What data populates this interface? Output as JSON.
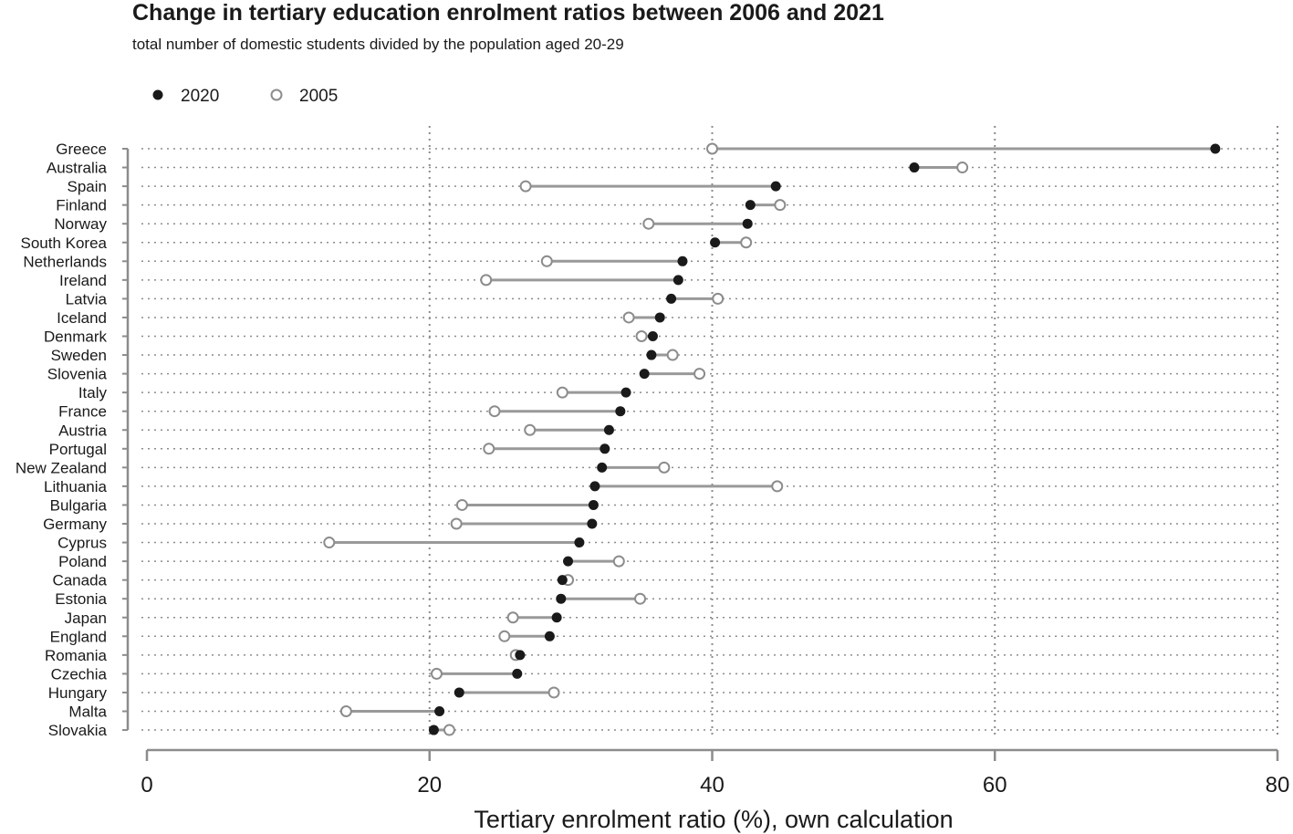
{
  "chart_data": {
    "type": "dumbbell",
    "title": "Change in tertiary education enrolment ratios between 2006 and 2021",
    "subtitle": "total number of domestic students divided by the population aged 20-29",
    "xlabel": "Tertiary enrolment ratio (%), own calculation",
    "ylabel": "",
    "xlim": [
      0,
      80
    ],
    "xticks": [
      0,
      20,
      40,
      60,
      80
    ],
    "grid": "dotted vertical at ticks, dotted horizontal per country",
    "legend_position": "top-left",
    "series": [
      {
        "name": "2020",
        "color": "#1a1a1a",
        "marker": "filled circle"
      },
      {
        "name": "2005",
        "color": "#8c8c8c",
        "marker": "open circle"
      }
    ],
    "categories": [
      "Greece",
      "Australia",
      "Spain",
      "Finland",
      "Norway",
      "South Korea",
      "Netherlands",
      "Ireland",
      "Latvia",
      "Iceland",
      "Denmark",
      "Sweden",
      "Slovenia",
      "Italy",
      "France",
      "Austria",
      "Portugal",
      "New Zealand",
      "Lithuania",
      "Bulgaria",
      "Germany",
      "Cyprus",
      "Poland",
      "Canada",
      "Estonia",
      "Japan",
      "England",
      "Romania",
      "Czechia",
      "Hungary",
      "Malta",
      "Slovakia"
    ],
    "values_2020": [
      75.6,
      54.3,
      44.5,
      42.7,
      42.5,
      40.2,
      37.9,
      37.6,
      37.1,
      36.3,
      35.8,
      35.7,
      35.2,
      33.9,
      33.5,
      32.7,
      32.4,
      32.2,
      31.7,
      31.6,
      31.5,
      30.6,
      29.8,
      29.4,
      29.3,
      29.0,
      28.5,
      26.4,
      26.2,
      22.1,
      20.7,
      20.3
    ],
    "values_2005": [
      40.0,
      57.7,
      26.8,
      44.8,
      35.5,
      42.4,
      28.3,
      24.0,
      40.4,
      34.1,
      35.0,
      37.2,
      39.1,
      29.4,
      24.6,
      27.1,
      24.2,
      36.6,
      44.6,
      22.3,
      21.9,
      12.9,
      33.4,
      29.8,
      34.9,
      25.9,
      25.3,
      26.1,
      20.5,
      28.8,
      14.1,
      21.4
    ],
    "line_color": "#999999"
  }
}
